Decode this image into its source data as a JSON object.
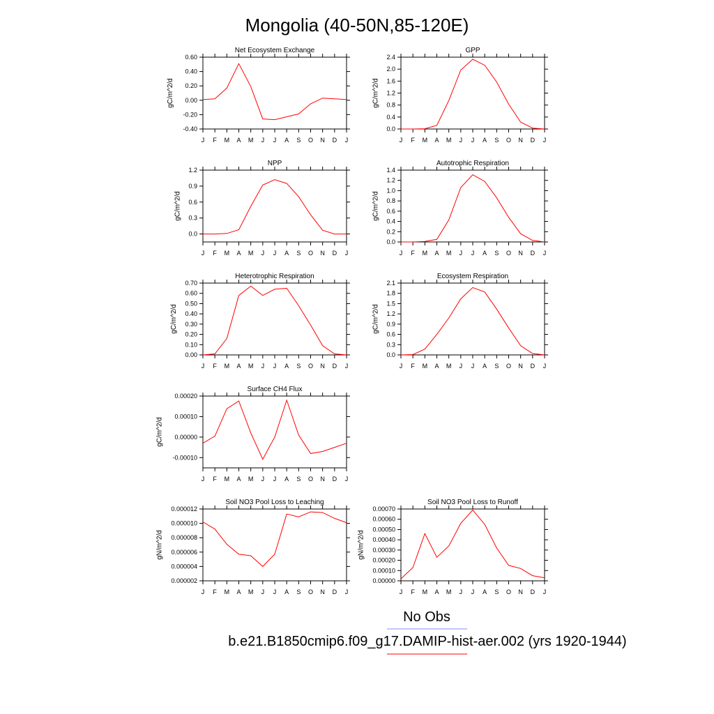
{
  "figure_title": "Mongolia (40-50N,85-120E)",
  "legend": [
    {
      "label": "No Obs",
      "color": "#8888ff"
    },
    {
      "label": "b.e21.B1850cmip6.f09_g17.DAMIP-hist-aer.002 (yrs 1920-1944)",
      "color": "#ff0000"
    }
  ],
  "series_color": "#ff0000",
  "chart_data": [
    {
      "type": "line",
      "title": "Net Ecosystem Exchange",
      "ylabel": "gC/m^2/d",
      "ylim": [
        -0.4,
        0.6
      ],
      "yticks": [
        -0.4,
        -0.2,
        0.0,
        0.2,
        0.4,
        0.6
      ],
      "ytick_labels": [
        "-0.40",
        "-0.20",
        "0.00",
        "0.20",
        "0.40",
        "0.60"
      ],
      "x": [
        "J",
        "F",
        "M",
        "A",
        "M",
        "J",
        "J",
        "A",
        "S",
        "O",
        "N",
        "D",
        "J"
      ],
      "values": [
        0.01,
        0.02,
        0.17,
        0.51,
        0.19,
        -0.26,
        -0.27,
        -0.23,
        -0.19,
        -0.05,
        0.03,
        0.02,
        0.01
      ]
    },
    {
      "type": "line",
      "title": "GPP",
      "ylabel": "gC/m^2/d",
      "ylim": [
        0,
        2.4
      ],
      "yticks": [
        0,
        0.4,
        0.8,
        1.2,
        1.6,
        2.0,
        2.4
      ],
      "ytick_labels": [
        "0.0",
        "0.4",
        "0.8",
        "1.2",
        "1.6",
        "2.0",
        "2.4"
      ],
      "x": [
        "J",
        "F",
        "M",
        "A",
        "M",
        "J",
        "J",
        "A",
        "S",
        "O",
        "N",
        "D",
        "J"
      ],
      "values": [
        0.0,
        0.0,
        0.01,
        0.12,
        0.95,
        1.97,
        2.33,
        2.13,
        1.57,
        0.83,
        0.23,
        0.03,
        0.0
      ]
    },
    {
      "type": "line",
      "title": "NPP",
      "ylabel": "gC/m^2/d",
      "ylim": [
        -0.15,
        1.2
      ],
      "yticks": [
        0.0,
        0.3,
        0.6,
        0.9,
        1.2
      ],
      "ytick_labels": [
        "0.0",
        "0.3",
        "0.6",
        "0.9",
        "1.2"
      ],
      "x": [
        "J",
        "F",
        "M",
        "A",
        "M",
        "J",
        "J",
        "A",
        "S",
        "O",
        "N",
        "D",
        "J"
      ],
      "values": [
        0.0,
        0.0,
        0.01,
        0.08,
        0.52,
        0.92,
        1.02,
        0.95,
        0.7,
        0.36,
        0.07,
        0.0,
        0.0
      ]
    },
    {
      "type": "line",
      "title": "Autotrophic Respiration",
      "ylabel": "gC/m^2/d",
      "ylim": [
        0,
        1.4
      ],
      "yticks": [
        0,
        0.2,
        0.4,
        0.6,
        0.8,
        1.0,
        1.2,
        1.4
      ],
      "ytick_labels": [
        "0.0",
        "0.2",
        "0.4",
        "0.6",
        "0.8",
        "1.0",
        "1.2",
        "1.4"
      ],
      "x": [
        "J",
        "F",
        "M",
        "A",
        "M",
        "J",
        "J",
        "A",
        "S",
        "O",
        "N",
        "D",
        "J"
      ],
      "values": [
        0.0,
        0.0,
        0.01,
        0.05,
        0.43,
        1.06,
        1.31,
        1.18,
        0.86,
        0.48,
        0.16,
        0.03,
        0.0
      ]
    },
    {
      "type": "line",
      "title": "Heterotrophic Respiration",
      "ylabel": "gC/m^2/d",
      "ylim": [
        0,
        0.7
      ],
      "yticks": [
        0,
        0.1,
        0.2,
        0.3,
        0.4,
        0.5,
        0.6,
        0.7
      ],
      "ytick_labels": [
        "0.00",
        "0.10",
        "0.20",
        "0.30",
        "0.40",
        "0.50",
        "0.60",
        "0.70"
      ],
      "x": [
        "J",
        "F",
        "M",
        "A",
        "M",
        "J",
        "J",
        "A",
        "S",
        "O",
        "N",
        "D",
        "J"
      ],
      "values": [
        0.0,
        0.01,
        0.16,
        0.58,
        0.67,
        0.58,
        0.64,
        0.65,
        0.48,
        0.29,
        0.09,
        0.01,
        0.0
      ]
    },
    {
      "type": "line",
      "title": "Ecosystem Respiration",
      "ylabel": "gC/m^2/d",
      "ylim": [
        0,
        2.1
      ],
      "yticks": [
        0,
        0.3,
        0.6,
        0.9,
        1.2,
        1.5,
        1.8,
        2.1
      ],
      "ytick_labels": [
        "0.0",
        "0.3",
        "0.6",
        "0.9",
        "1.2",
        "1.5",
        "1.8",
        "2.1"
      ],
      "x": [
        "J",
        "F",
        "M",
        "A",
        "M",
        "J",
        "J",
        "A",
        "S",
        "O",
        "N",
        "D",
        "J"
      ],
      "values": [
        0.0,
        0.01,
        0.17,
        0.6,
        1.08,
        1.64,
        1.97,
        1.84,
        1.34,
        0.79,
        0.27,
        0.04,
        0.0
      ]
    },
    {
      "type": "line",
      "title": "Surface CH4 Flux",
      "ylabel": "gC/m^2/d",
      "ylim": [
        -0.00015,
        0.0002
      ],
      "yticks": [
        -0.0001,
        0.0,
        0.0001,
        0.0002
      ],
      "ytick_labels": [
        "-0.00010",
        "0.00000",
        "0.00010",
        "0.00020"
      ],
      "x": [
        "J",
        "F",
        "M",
        "A",
        "M",
        "J",
        "J",
        "A",
        "S",
        "O",
        "N",
        "D",
        "J"
      ],
      "values": [
        -3e-05,
        5e-06,
        0.000138,
        0.000176,
        2e-05,
        -0.000108,
        0.0,
        0.00018,
        1e-05,
        -8e-05,
        -7e-05,
        -5e-05,
        -3e-05
      ]
    },
    {
      "type": "line",
      "title": "Soil NO3 Pool Loss to Leaching",
      "ylabel": "gN/m^2/d",
      "ylim": [
        2e-06,
        1.2e-05
      ],
      "yticks": [
        2e-06,
        4e-06,
        6e-06,
        8e-06,
        1e-05,
        1.2e-05
      ],
      "ytick_labels": [
        "0.000002",
        "0.000004",
        "0.000006",
        "0.000008",
        "0.000010",
        "0.000012"
      ],
      "x": [
        "J",
        "F",
        "M",
        "A",
        "M",
        "J",
        "J",
        "A",
        "S",
        "O",
        "N",
        "D",
        "J"
      ],
      "values": [
        1.02e-05,
        9.2e-06,
        7.1e-06,
        5.7e-06,
        5.5e-06,
        4e-06,
        5.7e-06,
        1.13e-05,
        1.09e-05,
        1.16e-05,
        1.15e-05,
        1.07e-05,
        1.01e-05
      ]
    },
    {
      "type": "line",
      "title": "Soil NO3 Pool Loss to Runoff",
      "ylabel": "gN/m^2/d",
      "ylim": [
        0,
        0.0007
      ],
      "yticks": [
        0,
        0.0001,
        0.0002,
        0.0003,
        0.0004,
        0.0005,
        0.0006,
        0.0007
      ],
      "ytick_labels": [
        "0.00000",
        "0.00010",
        "0.00020",
        "0.00030",
        "0.00040",
        "0.00050",
        "0.00060",
        "0.00070"
      ],
      "x": [
        "J",
        "F",
        "M",
        "A",
        "M",
        "J",
        "J",
        "A",
        "S",
        "O",
        "N",
        "D",
        "J"
      ],
      "values": [
        2e-05,
        0.00013,
        0.00046,
        0.00023,
        0.00034,
        0.00056,
        0.00069,
        0.00055,
        0.00032,
        0.00015,
        0.00012,
        5e-05,
        3e-05
      ]
    }
  ]
}
